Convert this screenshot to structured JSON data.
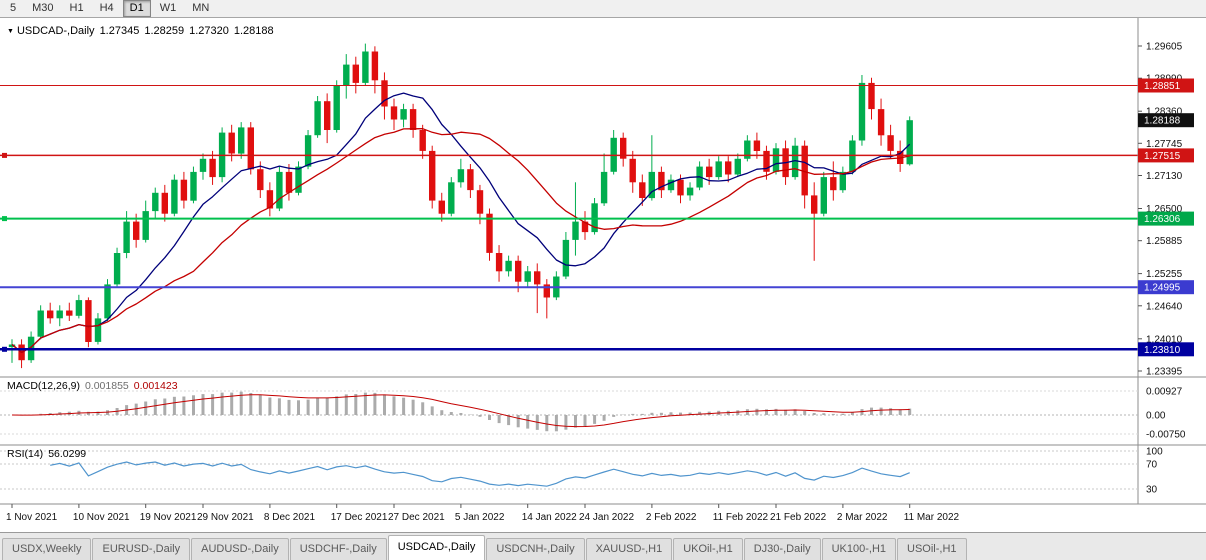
{
  "toolbar": {
    "buttons": [
      {
        "label": "5",
        "active": false
      },
      {
        "label": "M30",
        "active": false
      },
      {
        "label": "H1",
        "active": false
      },
      {
        "label": "H4",
        "active": false
      },
      {
        "label": "D1",
        "active": true
      },
      {
        "label": "W1",
        "active": false
      },
      {
        "label": "MN",
        "active": false
      }
    ]
  },
  "chart_header": {
    "symbol": "USDCAD-,Daily",
    "open": "1.27345",
    "high": "1.28259",
    "low": "1.27320",
    "close": "1.28188"
  },
  "price_axis": {
    "labels": [
      "1.29605",
      "1.28990",
      "1.28360",
      "1.27745",
      "1.27130",
      "1.26500",
      "1.25885",
      "1.25255",
      "1.24640",
      "1.24010",
      "1.23395"
    ],
    "badges": [
      {
        "text": "1.28851",
        "color": "#d01414"
      },
      {
        "text": "1.28188",
        "color": "#101010"
      },
      {
        "text": "1.27515",
        "color": "#d01414"
      },
      {
        "text": "1.26306",
        "color": "#00a84a"
      },
      {
        "text": "1.24995",
        "color": "#3b3bd0"
      },
      {
        "text": "1.23810",
        "color": "#0000a0"
      }
    ]
  },
  "hlines": [
    {
      "price": 1.28851,
      "color": "#d01414",
      "width": 1,
      "handle": false
    },
    {
      "price": 1.27515,
      "color": "#d01414",
      "width": 1.5,
      "handle": true
    },
    {
      "price": 1.26306,
      "color": "#00c04d",
      "width": 2,
      "handle": true
    },
    {
      "price": 1.24995,
      "color": "#4444d4",
      "width": 2,
      "handle": false
    },
    {
      "price": 1.2381,
      "color": "#0000a0",
      "width": 2.5,
      "handle": true
    }
  ],
  "chart_data": {
    "type": "candlestick",
    "symbol": "USDCAD-",
    "timeframe": "Daily",
    "y_range": [
      1.23395,
      1.29605
    ],
    "x_axis_labels": [
      {
        "index": 0,
        "label": "1 Nov 2021"
      },
      {
        "index": 7,
        "label": "10 Nov 2021"
      },
      {
        "index": 14,
        "label": "19 Nov 2021"
      },
      {
        "index": 20,
        "label": "29 Nov 2021"
      },
      {
        "index": 27,
        "label": "8 Dec 2021"
      },
      {
        "index": 34,
        "label": "17 Dec 2021"
      },
      {
        "index": 40,
        "label": "27 Dec 2021"
      },
      {
        "index": 47,
        "label": "5 Jan 2022"
      },
      {
        "index": 54,
        "label": "14 Jan 2022"
      },
      {
        "index": 60,
        "label": "24 Jan 2022"
      },
      {
        "index": 67,
        "label": "2 Feb 2022"
      },
      {
        "index": 74,
        "label": "11 Feb 2022"
      },
      {
        "index": 80,
        "label": "21 Feb 2022"
      },
      {
        "index": 87,
        "label": "2 Mar 2022"
      },
      {
        "index": 94,
        "label": "11 Mar 2022"
      }
    ],
    "open": [
      1.2385,
      1.239,
      1.236,
      1.2405,
      1.2455,
      1.244,
      1.2455,
      1.2445,
      1.2475,
      1.2395,
      1.244,
      1.2505,
      1.2565,
      1.2625,
      1.259,
      1.2645,
      1.268,
      1.264,
      1.2705,
      1.2665,
      1.272,
      1.2745,
      1.271,
      1.2795,
      1.2755,
      1.2805,
      1.2725,
      1.2685,
      1.265,
      1.272,
      1.268,
      1.273,
      1.279,
      1.2855,
      1.28,
      1.2885,
      1.2925,
      1.289,
      1.295,
      1.2895,
      1.2845,
      1.282,
      1.284,
      1.28,
      1.276,
      1.2665,
      1.264,
      1.27,
      1.2725,
      1.2685,
      1.264,
      1.2565,
      1.253,
      1.255,
      1.251,
      1.253,
      1.2505,
      1.248,
      1.252,
      1.259,
      1.2625,
      1.2605,
      1.266,
      1.272,
      1.2785,
      1.2745,
      1.27,
      1.267,
      1.272,
      1.2685,
      1.2705,
      1.2675,
      1.269,
      1.273,
      1.271,
      1.274,
      1.2715,
      1.2745,
      1.278,
      1.276,
      1.272,
      1.2765,
      1.271,
      1.277,
      1.2675,
      1.264,
      1.271,
      1.2685,
      1.272,
      1.278,
      1.289,
      1.284,
      1.279,
      1.276,
      1.27345
    ],
    "high": [
      1.24,
      1.24,
      1.2415,
      1.2465,
      1.247,
      1.2465,
      1.247,
      1.2485,
      1.248,
      1.245,
      1.2515,
      1.2575,
      1.2645,
      1.264,
      1.2665,
      1.269,
      1.2695,
      1.2715,
      1.272,
      1.273,
      1.2755,
      1.276,
      1.2805,
      1.281,
      1.2815,
      1.2815,
      1.274,
      1.27,
      1.273,
      1.2735,
      1.274,
      1.28,
      1.2865,
      1.287,
      1.2895,
      1.2945,
      1.294,
      1.2965,
      1.296,
      1.291,
      1.286,
      1.285,
      1.285,
      1.281,
      1.277,
      1.268,
      1.271,
      1.2745,
      1.2735,
      1.2695,
      1.265,
      1.258,
      1.256,
      1.256,
      1.254,
      1.2545,
      1.2515,
      1.253,
      1.2605,
      1.27,
      1.2645,
      1.267,
      1.2755,
      1.28,
      1.2795,
      1.276,
      1.2715,
      1.279,
      1.273,
      1.2715,
      1.2715,
      1.27,
      1.274,
      1.2745,
      1.275,
      1.275,
      1.2755,
      1.279,
      1.2795,
      1.277,
      1.2775,
      1.278,
      1.2785,
      1.278,
      1.27,
      1.272,
      1.274,
      1.273,
      1.279,
      1.2905,
      1.29,
      1.286,
      1.281,
      1.278,
      1.28259
    ],
    "low": [
      1.2355,
      1.2345,
      1.2355,
      1.24,
      1.243,
      1.2425,
      1.2435,
      1.244,
      1.2385,
      1.239,
      1.2435,
      1.25,
      1.2555,
      1.2575,
      1.2585,
      1.263,
      1.2625,
      1.2635,
      1.265,
      1.266,
      1.2705,
      1.2695,
      1.27,
      1.274,
      1.2745,
      1.2715,
      1.267,
      1.2635,
      1.2645,
      1.2665,
      1.2675,
      1.2725,
      1.2785,
      1.2775,
      1.2795,
      1.286,
      1.287,
      1.2885,
      1.287,
      1.282,
      1.28,
      1.2805,
      1.2785,
      1.2745,
      1.265,
      1.2625,
      1.2635,
      1.269,
      1.267,
      1.262,
      1.255,
      1.251,
      1.252,
      1.249,
      1.25,
      1.245,
      1.244,
      1.2475,
      1.2515,
      1.256,
      1.259,
      1.26,
      1.2655,
      1.2715,
      1.273,
      1.268,
      1.2655,
      1.2665,
      1.267,
      1.268,
      1.266,
      1.2665,
      1.2685,
      1.2695,
      1.2705,
      1.27,
      1.271,
      1.274,
      1.2745,
      1.2705,
      1.2715,
      1.2695,
      1.2705,
      1.265,
      1.255,
      1.2635,
      1.2665,
      1.268,
      1.2715,
      1.277,
      1.282,
      1.277,
      1.2745,
      1.272,
      1.2732
    ],
    "close": [
      1.239,
      1.236,
      1.2405,
      1.2455,
      1.244,
      1.2455,
      1.2445,
      1.2475,
      1.2395,
      1.244,
      1.2505,
      1.2565,
      1.2625,
      1.259,
      1.2645,
      1.268,
      1.264,
      1.2705,
      1.2665,
      1.272,
      1.2745,
      1.271,
      1.2795,
      1.2755,
      1.2805,
      1.2725,
      1.2685,
      1.265,
      1.272,
      1.268,
      1.273,
      1.279,
      1.2855,
      1.28,
      1.2885,
      1.2925,
      1.289,
      1.295,
      1.2895,
      1.2845,
      1.282,
      1.284,
      1.28,
      1.276,
      1.2665,
      1.264,
      1.27,
      1.2725,
      1.2685,
      1.264,
      1.2565,
      1.253,
      1.255,
      1.251,
      1.253,
      1.2505,
      1.248,
      1.252,
      1.259,
      1.2625,
      1.2605,
      1.266,
      1.272,
      1.2785,
      1.2745,
      1.27,
      1.267,
      1.272,
      1.2685,
      1.2705,
      1.2675,
      1.269,
      1.273,
      1.271,
      1.274,
      1.2715,
      1.2745,
      1.278,
      1.276,
      1.272,
      1.2765,
      1.271,
      1.277,
      1.2675,
      1.264,
      1.271,
      1.2685,
      1.272,
      1.278,
      1.289,
      1.284,
      1.279,
      1.276,
      1.2735,
      1.28188
    ],
    "overlays": [
      {
        "name": "ma-fast",
        "type": "sma",
        "period": 10,
        "color": "#00007a"
      },
      {
        "name": "ma-slow",
        "type": "sma",
        "period": 20,
        "color": "#c40000"
      }
    ]
  },
  "indicators": {
    "macd": {
      "label": "MACD(12,26,9)",
      "value_main": "0.001855",
      "value_signal": "0.001423",
      "fast": 12,
      "slow": 26,
      "signal": 9,
      "axis_labels": [
        "0.00927",
        "0.00",
        "-0.00750"
      ],
      "hist_color": "#ababab",
      "signal_color": "#c40000"
    },
    "rsi": {
      "label": "RSI(14)",
      "value": "56.0299",
      "period": 14,
      "levels": [
        70,
        30
      ],
      "axis_labels": [
        "100",
        "70",
        "30"
      ],
      "line_color": "#4f94cd"
    }
  },
  "colors": {
    "up": "#00ad4e",
    "down": "#e00f0f",
    "background": "#ffffff",
    "panel_border": "#8e8e8e"
  },
  "tabs": [
    {
      "label": "USDX,Weekly",
      "active": false
    },
    {
      "label": "EURUSD-,Daily",
      "active": false
    },
    {
      "label": "AUDUSD-,Daily",
      "active": false
    },
    {
      "label": "USDCHF-,Daily",
      "active": false
    },
    {
      "label": "USDCAD-,Daily",
      "active": true
    },
    {
      "label": "USDCNH-,Daily",
      "active": false
    },
    {
      "label": "XAUUSD-,H1",
      "active": false
    },
    {
      "label": "UKOil-,H1",
      "active": false
    },
    {
      "label": "DJ30-,Daily",
      "active": false
    },
    {
      "label": "UK100-,H1",
      "active": false
    },
    {
      "label": "USOil-,H1",
      "active": false
    }
  ]
}
